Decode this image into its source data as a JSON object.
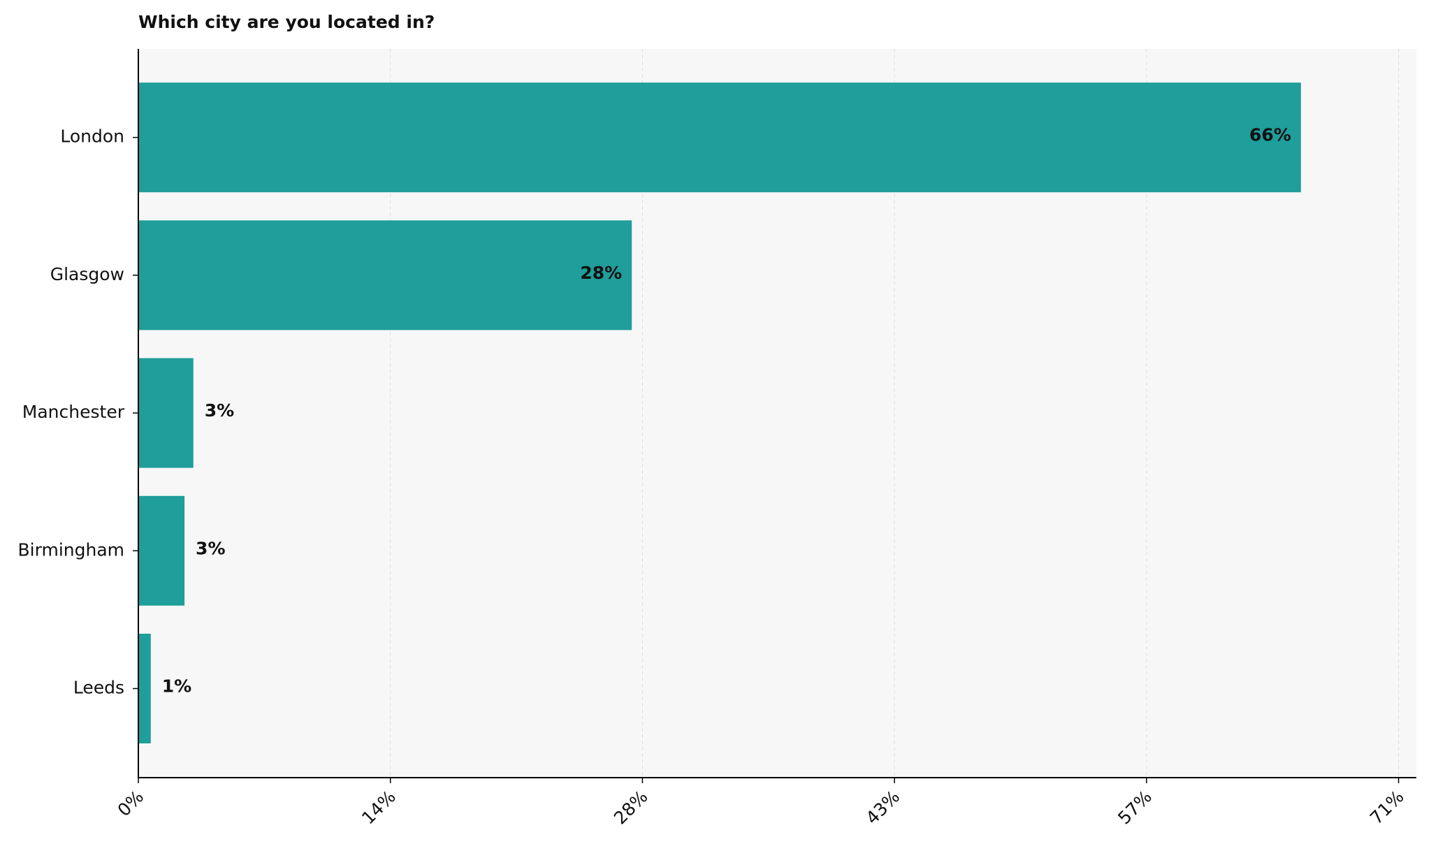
{
  "chart_data": {
    "type": "barh",
    "title": "Which city are you located in?",
    "categories": [
      "London",
      "Glasgow",
      "Manchester",
      "Birmingham",
      "Leeds"
    ],
    "values": [
      65.5,
      27.8,
      3.1,
      2.6,
      0.7
    ],
    "value_labels": [
      "66%",
      "28%",
      "3%",
      "3%",
      "1%"
    ],
    "color": "#1f9e9b",
    "xlim": [
      0,
      72
    ],
    "xticks": [
      {
        "value": 0,
        "label": "0%"
      },
      {
        "value": 14.2,
        "label": "14%"
      },
      {
        "value": 28.4,
        "label": "28%"
      },
      {
        "value": 42.6,
        "label": "43%"
      },
      {
        "value": 56.8,
        "label": "57%"
      },
      {
        "value": 71,
        "label": "71%"
      }
    ],
    "grid": true
  }
}
